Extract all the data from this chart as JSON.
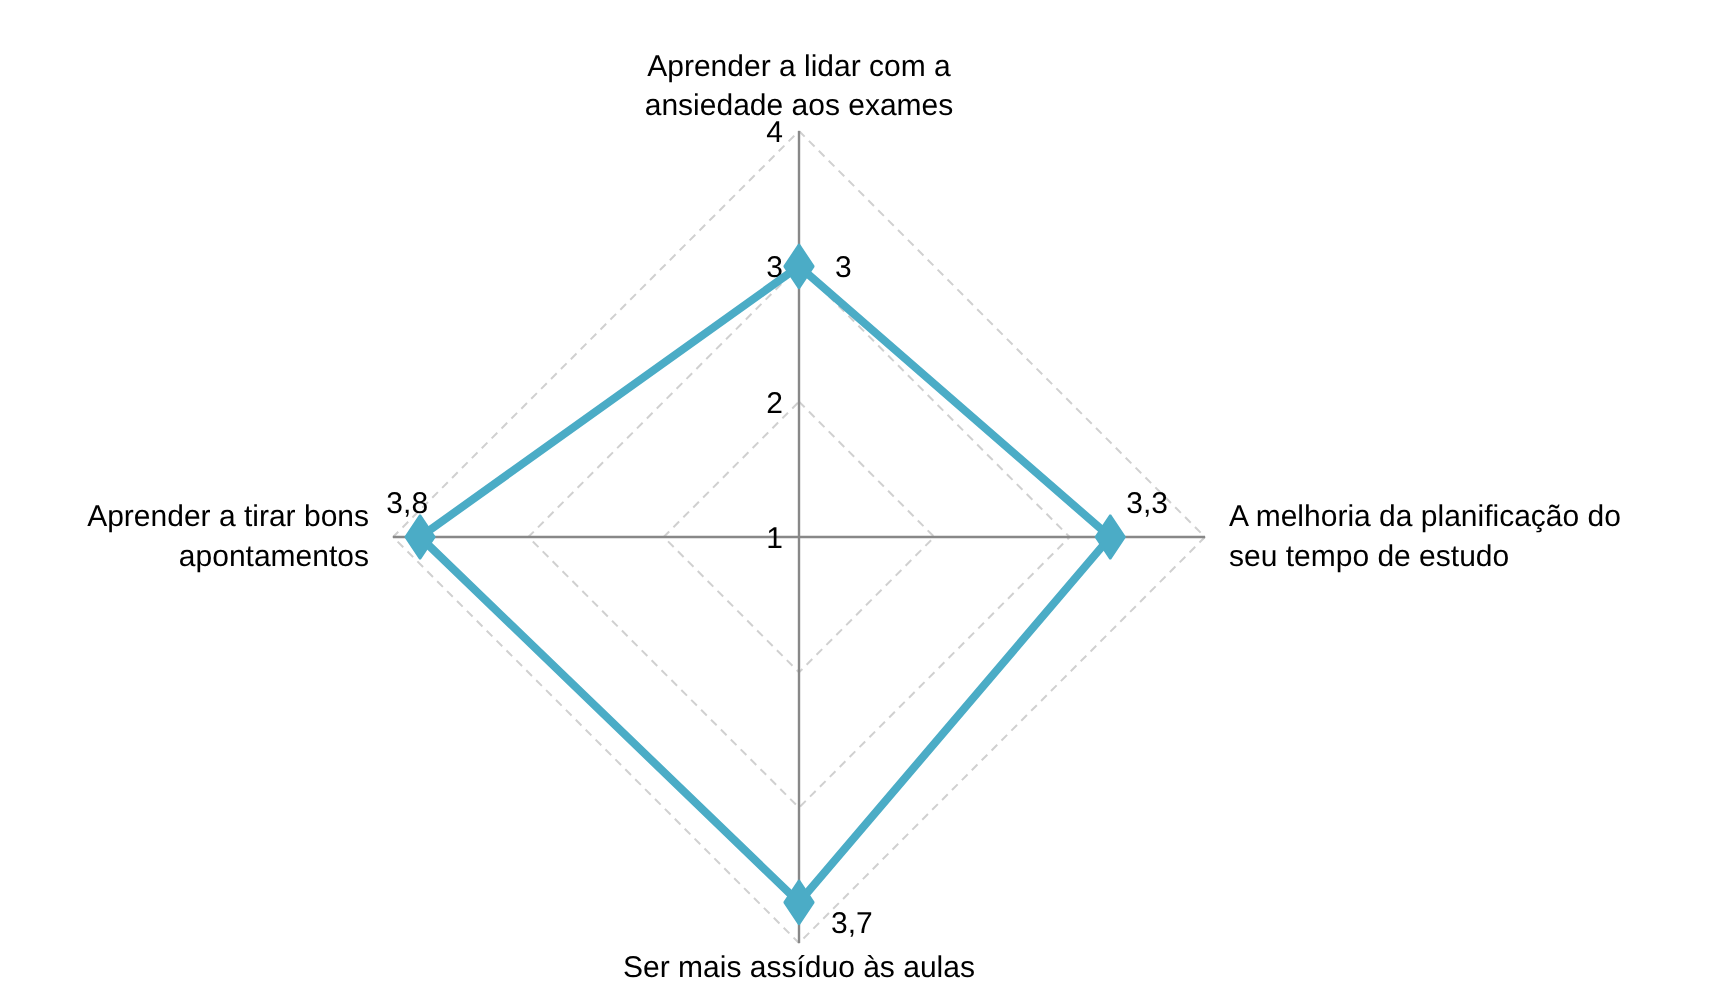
{
  "chart_data": {
    "type": "radar",
    "categories": [
      "Aprender a lidar com a\nansiedade aos exames",
      "A melhoria da planificação do\nseu tempo de estudo",
      "Ser mais assíduo às aulas",
      "Aprender a tirar bons\napontamentos"
    ],
    "series": [
      {
        "color": "#4bacc6",
        "values": [
          3,
          3.3,
          3.7,
          3.8
        ],
        "value_labels": [
          "3",
          "3,3",
          "3,7",
          "3,8"
        ]
      }
    ],
    "ylim": [
      1,
      4
    ],
    "yticks": [
      1,
      2,
      3,
      4
    ],
    "grid": true,
    "marker": "diamond",
    "line_style": "solid"
  }
}
